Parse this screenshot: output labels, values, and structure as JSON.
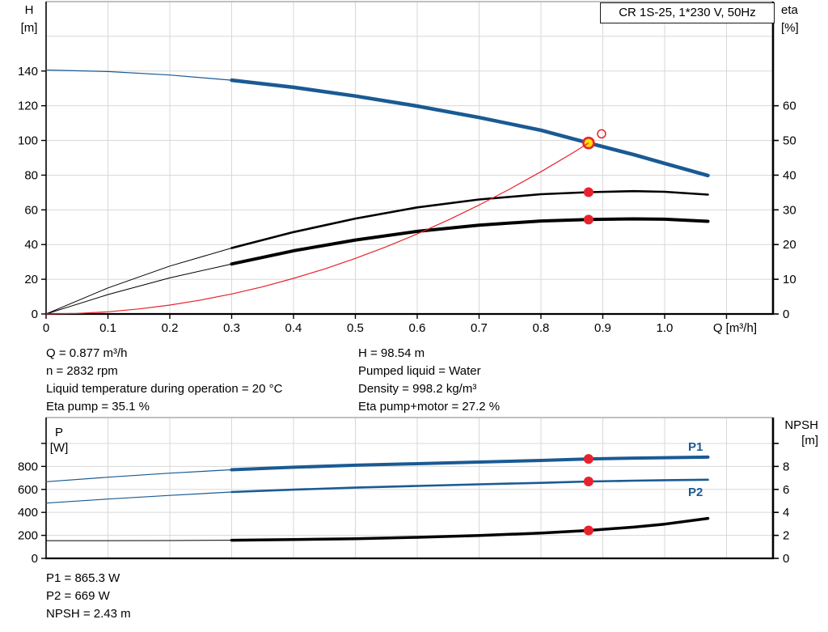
{
  "title_box": {
    "label": "CR 1S-25, 1*230 V, 50Hz"
  },
  "colors": {
    "curve_blue": "#1a5a93",
    "red": "#e8222d",
    "yellow": "#ffdf00",
    "black": "#000000",
    "grid": "#d8d8d8",
    "frame": "#ababab",
    "label_blue": "#1a5a93"
  },
  "axis_labels": {
    "h": [
      "H",
      "[m]"
    ],
    "eta": [
      "eta",
      "[%]"
    ],
    "p": [
      "P",
      "[W]"
    ],
    "npsh": [
      "NPSH",
      "[m]"
    ]
  },
  "info_top_left": [
    "Q = 0.877 m³/h",
    "n = 2832 rpm",
    "Liquid temperature during operation = 20 °C",
    "Eta pump = 35.1 %"
  ],
  "info_top_right": [
    "H = 98.54 m",
    "Pumped liquid = Water",
    "Density = 998.2 kg/m³",
    "Eta pump+motor = 27.2 %"
  ],
  "info_bottom": [
    "P1 = 865.3 W",
    "P2 = 669 W",
    "NPSH = 2.43 m"
  ],
  "chart_data": [
    {
      "name": "qh-eta-chart",
      "type": "line",
      "title": "CR 1S-25, 1*230 V, 50Hz",
      "xlabel": "Q [m³/h]",
      "xlabel_x": 1.09,
      "ylabel_left": "H [m]",
      "ylabel_right": "eta [%]",
      "xlim": [
        0,
        1.1752
      ],
      "ylim_left": [
        0,
        180
      ],
      "ylim_right": [
        0,
        90
      ],
      "xticks": [
        0,
        0.1,
        0.2,
        0.3,
        0.4,
        0.5,
        0.6,
        0.7,
        0.8,
        0.9,
        1.0,
        1.1
      ],
      "xtick_labels": [
        "0",
        "0.1",
        "0.2",
        "0.3",
        "0.4",
        "0.5",
        "0.6",
        "0.7",
        "0.8",
        "0.9",
        "1.0",
        ""
      ],
      "yticks_left": [
        0,
        20,
        40,
        60,
        80,
        100,
        120,
        140
      ],
      "ytick_labels_left": [
        "0",
        "20",
        "40",
        "60",
        "80",
        "100",
        "120",
        "140"
      ],
      "yticks_right": [
        0,
        10,
        20,
        30,
        40,
        50,
        60
      ],
      "ytick_labels_right": [
        "0",
        "10",
        "20",
        "30",
        "40",
        "50",
        "60"
      ],
      "xgrid": [
        0.1,
        0.2,
        0.3,
        0.4,
        0.5,
        0.6,
        0.7,
        0.8,
        0.9,
        1.0,
        1.1
      ],
      "ygrid": [
        20,
        40,
        60,
        80,
        100,
        120,
        140,
        160,
        180
      ],
      "series": [
        {
          "name": "head-curve",
          "axis": "left",
          "color": "#1a5a93",
          "width": 4.5,
          "thin_width": 1.2,
          "split": 0.3,
          "points": [
            [
              0,
              140.6
            ],
            [
              0.1,
              139.7
            ],
            [
              0.2,
              137.7
            ],
            [
              0.3,
              134.7
            ],
            [
              0.4,
              130.6
            ],
            [
              0.5,
              125.6
            ],
            [
              0.6,
              119.8
            ],
            [
              0.7,
              113.2
            ],
            [
              0.8,
              105.9
            ],
            [
              0.877,
              98.54
            ],
            [
              0.95,
              91.8
            ],
            [
              1.0,
              86.8
            ],
            [
              1.07,
              79.8
            ]
          ]
        },
        {
          "name": "eta-pump-curve",
          "axis": "right",
          "color": "#000000",
          "width": 2.6,
          "thin_width": 1,
          "split": 0.3,
          "points": [
            [
              0,
              0
            ],
            [
              0.1,
              7.5
            ],
            [
              0.2,
              13.8
            ],
            [
              0.3,
              19.0
            ],
            [
              0.4,
              23.6
            ],
            [
              0.5,
              27.5
            ],
            [
              0.6,
              30.7
            ],
            [
              0.7,
              33.0
            ],
            [
              0.8,
              34.5
            ],
            [
              0.877,
              35.1
            ],
            [
              0.95,
              35.4
            ],
            [
              1.0,
              35.2
            ],
            [
              1.07,
              34.4
            ]
          ]
        },
        {
          "name": "eta-pump-motor-curve",
          "axis": "right",
          "color": "#000000",
          "width": 4,
          "thin_width": 1,
          "split": 0.3,
          "points": [
            [
              0,
              0
            ],
            [
              0.1,
              5.6
            ],
            [
              0.2,
              10.4
            ],
            [
              0.3,
              14.4
            ],
            [
              0.4,
              18.2
            ],
            [
              0.5,
              21.3
            ],
            [
              0.6,
              23.8
            ],
            [
              0.7,
              25.6
            ],
            [
              0.8,
              26.8
            ],
            [
              0.877,
              27.2
            ],
            [
              0.95,
              27.4
            ],
            [
              1.0,
              27.3
            ],
            [
              1.07,
              26.7
            ]
          ]
        },
        {
          "name": "system-curve",
          "axis": "left",
          "color": "#e8222d",
          "width": 1.2,
          "points": [
            [
              0,
              0
            ],
            [
              0.05,
              0.32
            ],
            [
              0.1,
              1.28
            ],
            [
              0.15,
              2.88
            ],
            [
              0.2,
              5.12
            ],
            [
              0.25,
              8.0
            ],
            [
              0.3,
              11.53
            ],
            [
              0.35,
              15.69
            ],
            [
              0.4,
              20.5
            ],
            [
              0.45,
              25.94
            ],
            [
              0.5,
              32.03
            ],
            [
              0.55,
              38.75
            ],
            [
              0.6,
              46.12
            ],
            [
              0.65,
              54.12
            ],
            [
              0.7,
              62.77
            ],
            [
              0.75,
              72.05
            ],
            [
              0.8,
              81.98
            ],
            [
              0.85,
              92.54
            ],
            [
              0.877,
              98.54
            ]
          ]
        }
      ],
      "markers": [
        {
          "name": "duty-point",
          "style": "yellow-ring",
          "axis": "left",
          "x": 0.877,
          "y": 98.54,
          "r": 6.5
        },
        {
          "name": "rated-point",
          "style": "open-red",
          "axis": "left",
          "x": 0.898,
          "y": 103.8,
          "r": 5
        },
        {
          "name": "eta-pump-duty-dot",
          "style": "red-dot",
          "axis": "right",
          "x": 0.877,
          "y": 35.1,
          "r": 6
        },
        {
          "name": "eta-pump-motor-duty-dot",
          "style": "red-dot",
          "axis": "right",
          "x": 0.877,
          "y": 27.2,
          "r": 6
        }
      ],
      "duty_values": {
        "Q": "0.877 m³/h",
        "H": "98.54 m",
        "eta_pump": "35.1 %",
        "eta_pump_motor": "27.2 %"
      }
    },
    {
      "name": "power-npsh-chart",
      "type": "line",
      "title": "",
      "xlabel": "",
      "ylabel_left": "P [W]",
      "ylabel_right": "NPSH [m]",
      "xlim": [
        0,
        1.1752
      ],
      "ylim_left": [
        0,
        1225
      ],
      "ylim_right": [
        0,
        12.25
      ],
      "xticks": [],
      "xtick_labels": [],
      "yticks_left": [
        0,
        200,
        400,
        600,
        800,
        1000
      ],
      "ytick_labels_left": [
        "0",
        "200",
        "400",
        "600",
        "800",
        ""
      ],
      "yticks_right": [
        0,
        2,
        4,
        6,
        8,
        10
      ],
      "ytick_labels_right": [
        "0",
        "2",
        "4",
        "6",
        "8",
        ""
      ],
      "xgrid": [
        0.1,
        0.2,
        0.3,
        0.4,
        0.5,
        0.6,
        0.7,
        0.8,
        0.9,
        1.0,
        1.1
      ],
      "ygrid": [
        200,
        400,
        600,
        800,
        1000
      ],
      "series_labels": {
        "p1": "P1",
        "p2": "P2"
      },
      "series": [
        {
          "name": "p1-curve",
          "axis": "left",
          "color": "#1a5a93",
          "width": 4,
          "thin_width": 1.2,
          "split": 0.3,
          "points": [
            [
              0,
              667
            ],
            [
              0.1,
              706
            ],
            [
              0.2,
              741
            ],
            [
              0.3,
              771
            ],
            [
              0.4,
              793
            ],
            [
              0.5,
              810
            ],
            [
              0.6,
              824
            ],
            [
              0.7,
              838
            ],
            [
              0.8,
              852
            ],
            [
              0.877,
              865.3
            ],
            [
              0.95,
              872
            ],
            [
              1.0,
              876
            ],
            [
              1.07,
              881
            ]
          ]
        },
        {
          "name": "p2-curve",
          "axis": "left",
          "color": "#1a5a93",
          "width": 2.6,
          "thin_width": 1.2,
          "split": 0.3,
          "points": [
            [
              0,
              481
            ],
            [
              0.1,
              516
            ],
            [
              0.2,
              548
            ],
            [
              0.3,
              577
            ],
            [
              0.4,
              598
            ],
            [
              0.5,
              615
            ],
            [
              0.6,
              630
            ],
            [
              0.7,
              644
            ],
            [
              0.8,
              657
            ],
            [
              0.877,
              669
            ],
            [
              0.95,
              676
            ],
            [
              1.0,
              680
            ],
            [
              1.07,
              684
            ]
          ]
        },
        {
          "name": "npsh-curve",
          "axis": "right",
          "color": "#000000",
          "width": 3.5,
          "thin_width": 1,
          "split": 0.3,
          "points": [
            [
              0,
              1.54
            ],
            [
              0.1,
              1.54
            ],
            [
              0.2,
              1.55
            ],
            [
              0.3,
              1.58
            ],
            [
              0.4,
              1.63
            ],
            [
              0.5,
              1.71
            ],
            [
              0.6,
              1.83
            ],
            [
              0.7,
              1.99
            ],
            [
              0.8,
              2.2
            ],
            [
              0.877,
              2.43
            ],
            [
              0.95,
              2.72
            ],
            [
              1.0,
              2.98
            ],
            [
              1.07,
              3.48
            ]
          ]
        }
      ],
      "markers": [
        {
          "name": "p1-duty-dot",
          "style": "red-dot",
          "axis": "left",
          "x": 0.877,
          "y": 865.3,
          "r": 6
        },
        {
          "name": "p2-duty-dot",
          "style": "red-dot",
          "axis": "left",
          "x": 0.877,
          "y": 669,
          "r": 6
        },
        {
          "name": "npsh-duty-dot",
          "style": "red-dot",
          "axis": "right",
          "x": 0.877,
          "y": 2.43,
          "r": 6
        }
      ],
      "duty_values": {
        "P1": "865.3 W",
        "P2": "669 W",
        "NPSH": "2.43 m"
      }
    }
  ]
}
